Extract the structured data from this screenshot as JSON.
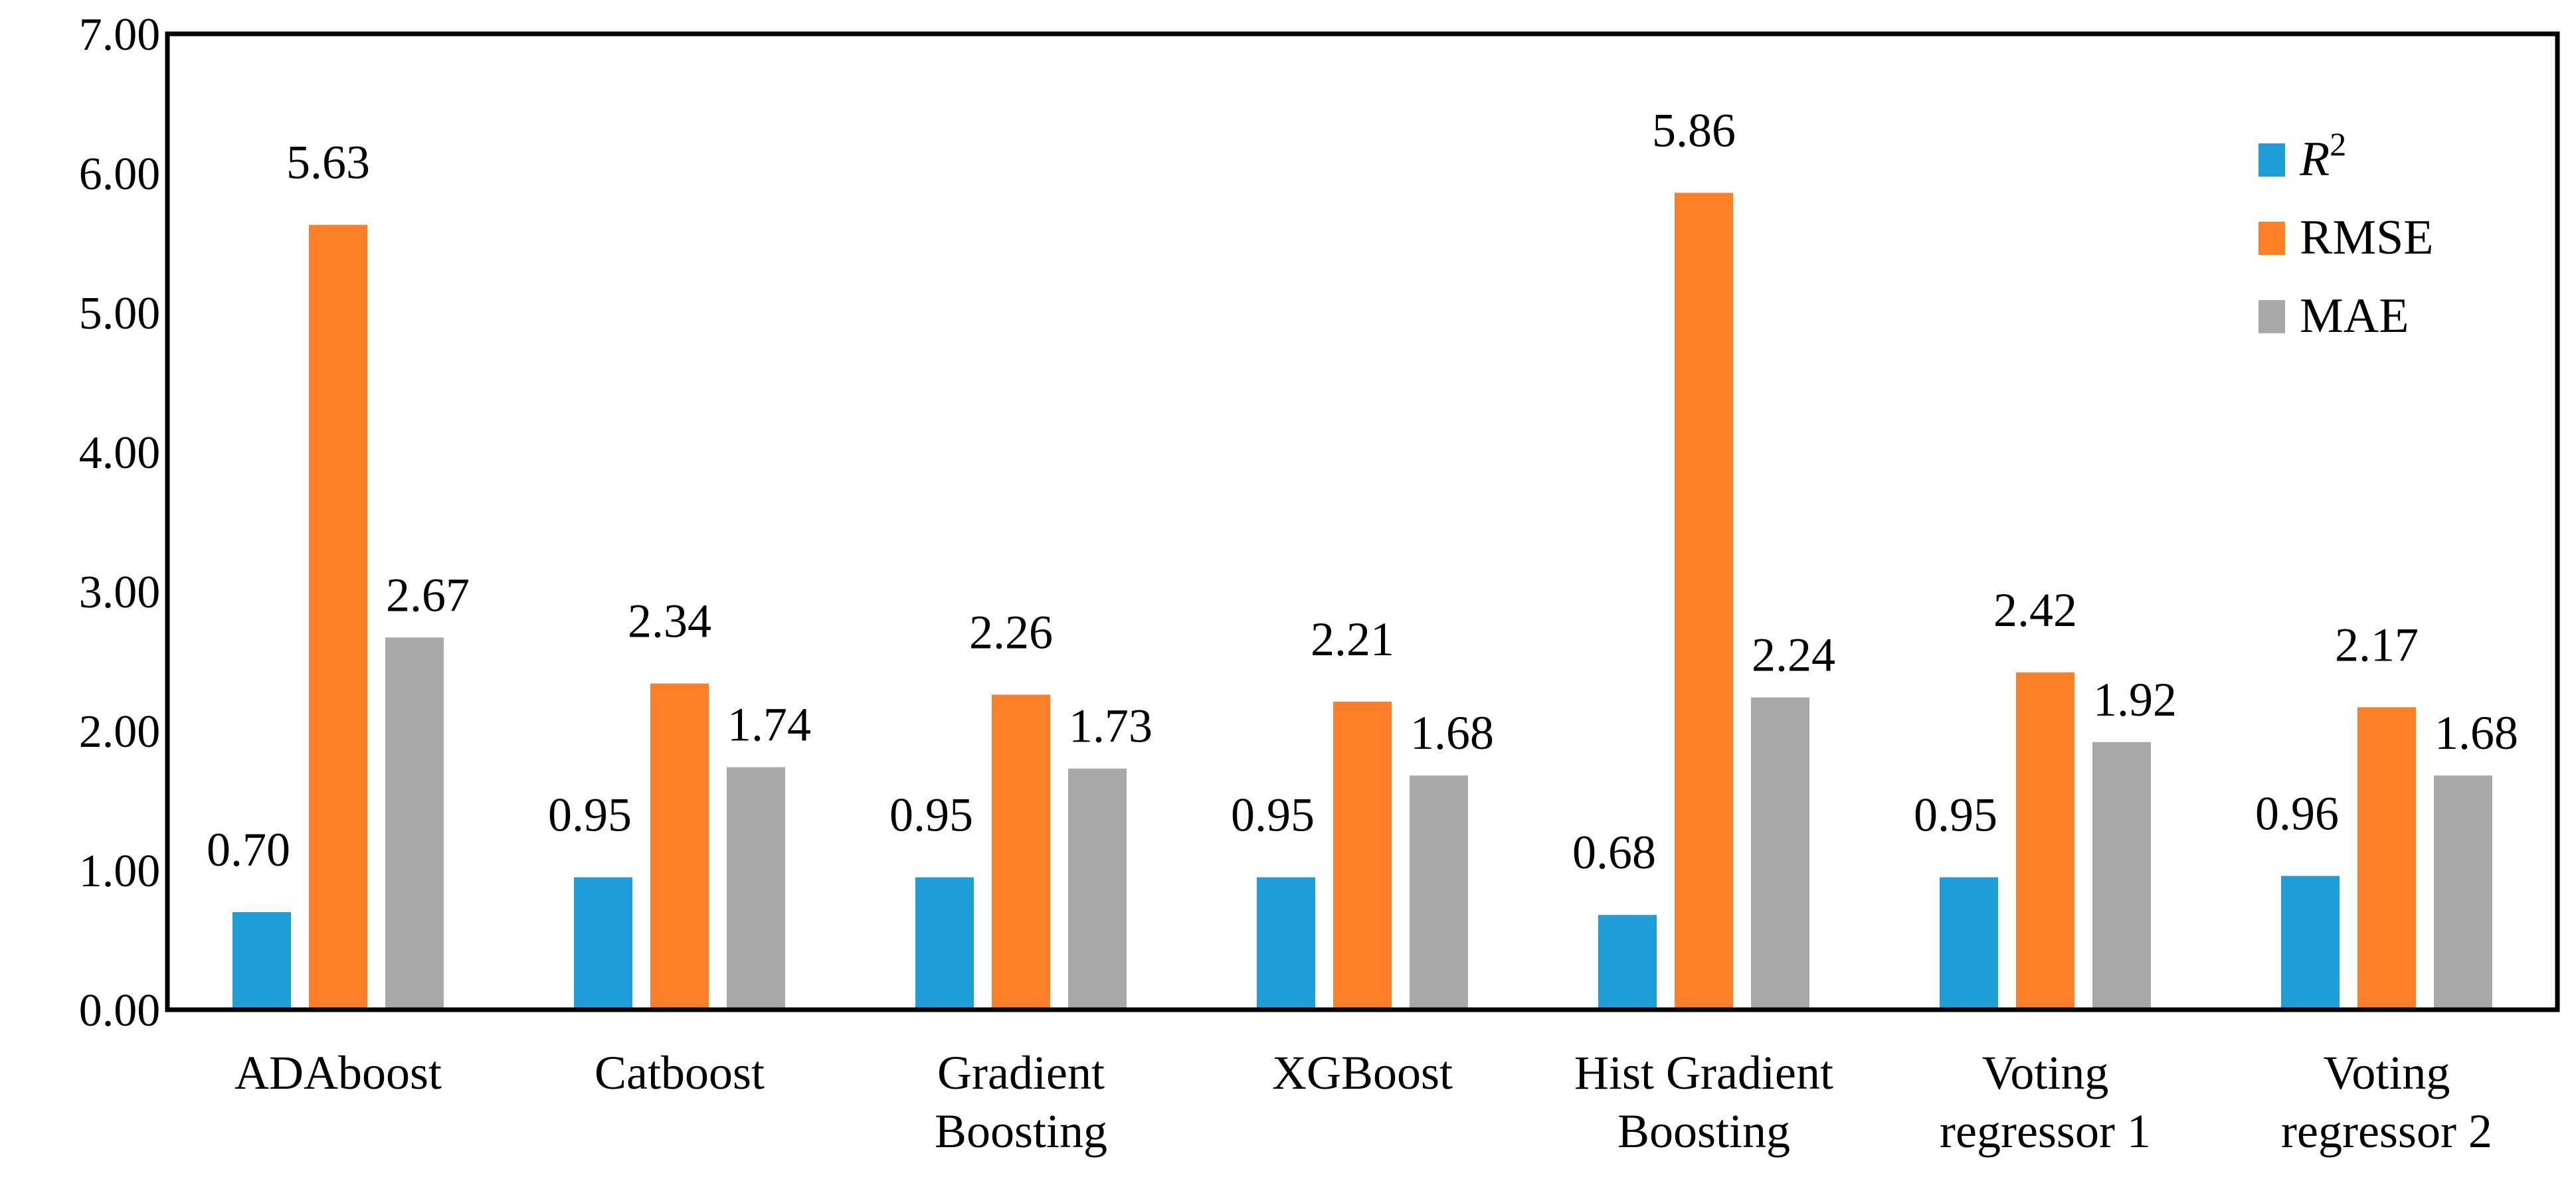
{
  "chart_data": {
    "type": "bar",
    "title": "",
    "xlabel": "",
    "ylabel": "",
    "ylim": [
      0,
      7
    ],
    "yticks": [
      "0.00",
      "1.00",
      "2.00",
      "3.00",
      "4.00",
      "5.00",
      "6.00",
      "7.00"
    ],
    "grid": false,
    "legend_position": "top-right",
    "categories": [
      [
        "ADAboost"
      ],
      [
        "Catboost"
      ],
      [
        "Gradient",
        "Boosting"
      ],
      [
        "XGBoost"
      ],
      [
        "Hist Gradient",
        "Boosting"
      ],
      [
        "Voting",
        "regressor 1"
      ],
      [
        "Voting",
        "regressor 2"
      ]
    ],
    "series": [
      {
        "name": "R",
        "name_superscript": "2",
        "color": "#1f9ed9",
        "values": [
          0.7,
          0.95,
          0.95,
          0.95,
          0.68,
          0.95,
          0.96
        ],
        "labels": [
          "0.70",
          "0.95",
          "0.95",
          "0.95",
          "0.68",
          "0.95",
          "0.96"
        ]
      },
      {
        "name": "RMSE",
        "color": "#fd7f27",
        "values": [
          5.63,
          2.34,
          2.26,
          2.21,
          5.86,
          2.42,
          2.17
        ],
        "labels": [
          "5.63",
          "2.34",
          "2.26",
          "2.21",
          "5.86",
          "2.42",
          "2.17"
        ]
      },
      {
        "name": "MAE",
        "color": "#a8a8a8",
        "values": [
          2.67,
          1.74,
          1.73,
          1.68,
          2.24,
          1.92,
          1.68
        ],
        "labels": [
          "2.67",
          "1.74",
          "1.73",
          "1.68",
          "2.24",
          "1.92",
          "1.68"
        ]
      }
    ]
  }
}
